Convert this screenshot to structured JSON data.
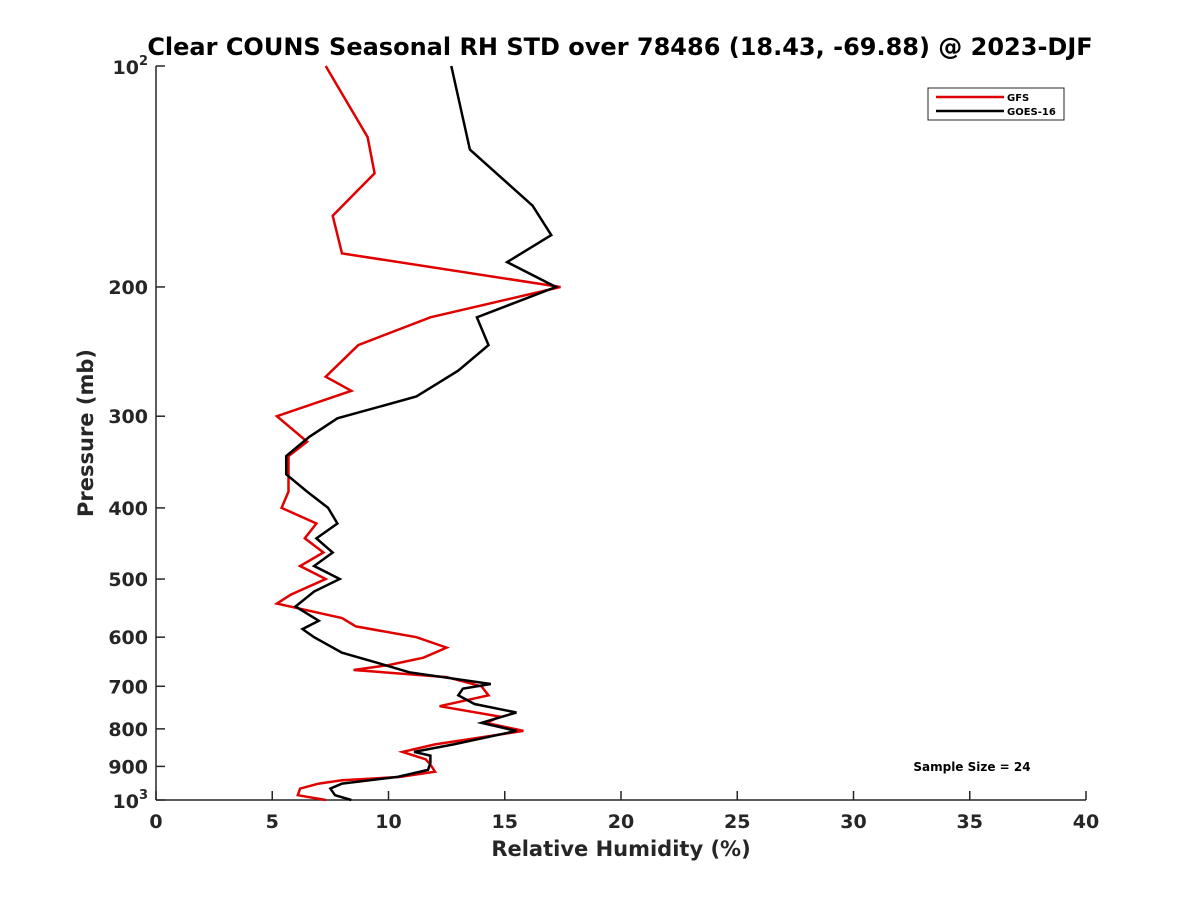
{
  "chart_data": {
    "type": "line",
    "title": "Clear COUNS Seasonal RH STD over 78486 (18.43, -69.88) @ 2023-DJF",
    "xlabel": "Relative Humidity (%)",
    "ylabel": "Pressure (mb)",
    "xlim": [
      0,
      40
    ],
    "ylim": [
      100,
      1000
    ],
    "yscale": "log",
    "y_reversed": true,
    "grid": false,
    "legend_position": "top-right",
    "x_ticks": [
      {
        "value": 0,
        "label": "0"
      },
      {
        "value": 5,
        "label": "5"
      },
      {
        "value": 10,
        "label": "10"
      },
      {
        "value": 15,
        "label": "15"
      },
      {
        "value": 20,
        "label": "20"
      },
      {
        "value": 25,
        "label": "25"
      },
      {
        "value": 30,
        "label": "30"
      },
      {
        "value": 35,
        "label": "35"
      },
      {
        "value": 40,
        "label": "40"
      }
    ],
    "y_ticks_plain": [
      {
        "value": 200,
        "label": "200"
      },
      {
        "value": 300,
        "label": "300"
      },
      {
        "value": 400,
        "label": "400"
      },
      {
        "value": 500,
        "label": "500"
      },
      {
        "value": 600,
        "label": "600"
      },
      {
        "value": 700,
        "label": "700"
      },
      {
        "value": 800,
        "label": "800"
      },
      {
        "value": 900,
        "label": "900"
      }
    ],
    "y_ticks_power": [
      {
        "value": 100,
        "base": "10",
        "exp": "2"
      },
      {
        "value": 1000,
        "base": "10",
        "exp": "3"
      }
    ],
    "annotation": "Sample Size = 24",
    "series": [
      {
        "name": "GFS",
        "color": "#e00000",
        "points": [
          [
            7.3,
            1000
          ],
          [
            6.1,
            985
          ],
          [
            6.2,
            965
          ],
          [
            7.0,
            950
          ],
          [
            8.0,
            940
          ],
          [
            10.5,
            930
          ],
          [
            12.0,
            915
          ],
          [
            11.8,
            895
          ],
          [
            11.6,
            880
          ],
          [
            10.6,
            860
          ],
          [
            12.0,
            840
          ],
          [
            15.8,
            805
          ],
          [
            14.2,
            785
          ],
          [
            14.8,
            770
          ],
          [
            12.2,
            745
          ],
          [
            14.3,
            720
          ],
          [
            14.0,
            700
          ],
          [
            12.5,
            680
          ],
          [
            8.5,
            665
          ],
          [
            10.0,
            655
          ],
          [
            11.5,
            640
          ],
          [
            12.5,
            620
          ],
          [
            11.2,
            600
          ],
          [
            8.6,
            580
          ],
          [
            8.0,
            565
          ],
          [
            5.2,
            540
          ],
          [
            5.8,
            525
          ],
          [
            7.3,
            500
          ],
          [
            6.2,
            480
          ],
          [
            7.2,
            460
          ],
          [
            6.4,
            440
          ],
          [
            6.9,
            420
          ],
          [
            5.4,
            400
          ],
          [
            5.7,
            380
          ],
          [
            5.7,
            340
          ],
          [
            6.5,
            325
          ],
          [
            5.2,
            300
          ],
          [
            8.4,
            277
          ],
          [
            7.3,
            265
          ],
          [
            8.7,
            240
          ],
          [
            11.8,
            220
          ],
          [
            17.4,
            200
          ],
          [
            8.0,
            180
          ],
          [
            7.6,
            160
          ],
          [
            9.4,
            140
          ],
          [
            9.1,
            125
          ],
          [
            7.3,
            100
          ]
        ]
      },
      {
        "name": "GOES-16",
        "color": "#000000",
        "points": [
          [
            8.4,
            1000
          ],
          [
            7.7,
            985
          ],
          [
            7.5,
            965
          ],
          [
            8.0,
            950
          ],
          [
            10.4,
            930
          ],
          [
            11.7,
            910
          ],
          [
            11.8,
            890
          ],
          [
            11.8,
            870
          ],
          [
            11.1,
            860
          ],
          [
            12.8,
            840
          ],
          [
            15.5,
            805
          ],
          [
            14.0,
            785
          ],
          [
            15.5,
            760
          ],
          [
            13.7,
            740
          ],
          [
            13.0,
            720
          ],
          [
            13.2,
            705
          ],
          [
            14.4,
            695
          ],
          [
            10.9,
            670
          ],
          [
            9.5,
            650
          ],
          [
            8.0,
            630
          ],
          [
            6.8,
            600
          ],
          [
            6.3,
            585
          ],
          [
            7.0,
            570
          ],
          [
            6.0,
            545
          ],
          [
            6.8,
            520
          ],
          [
            7.9,
            500
          ],
          [
            6.8,
            480
          ],
          [
            7.6,
            460
          ],
          [
            6.9,
            440
          ],
          [
            7.8,
            420
          ],
          [
            7.4,
            400
          ],
          [
            6.5,
            380
          ],
          [
            5.6,
            360
          ],
          [
            5.6,
            340
          ],
          [
            6.6,
            320
          ],
          [
            7.8,
            302
          ],
          [
            11.2,
            282
          ],
          [
            13.0,
            260
          ],
          [
            14.3,
            240
          ],
          [
            13.8,
            220
          ],
          [
            17.2,
            200
          ],
          [
            15.1,
            185
          ],
          [
            17.0,
            170
          ],
          [
            16.2,
            155
          ],
          [
            13.5,
            130
          ],
          [
            12.7,
            100
          ]
        ]
      }
    ]
  }
}
